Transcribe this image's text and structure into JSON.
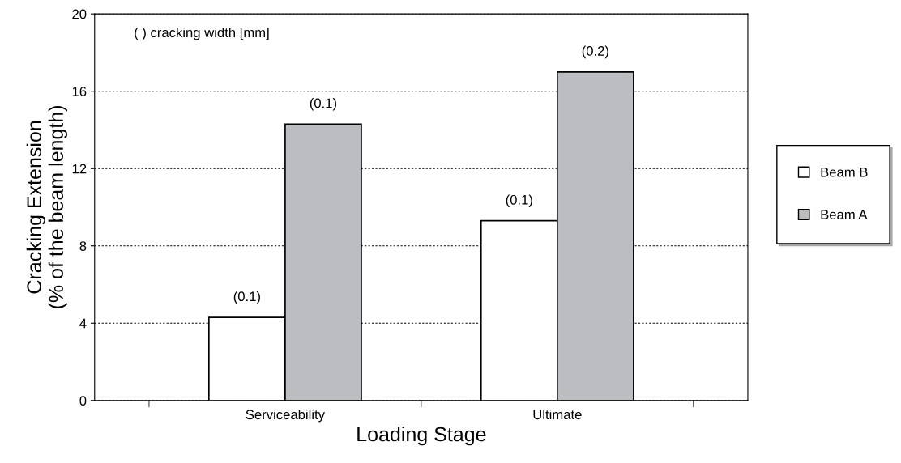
{
  "chart_data": {
    "type": "bar",
    "xlabel": "Loading Stage",
    "ylabel": "Cracking Extension\n(% of the beam length)",
    "categories": [
      "Serviceability",
      "Ultimate"
    ],
    "series": [
      {
        "name": "Beam B",
        "color": "#ffffff",
        "values": [
          4.3,
          9.3
        ]
      },
      {
        "name": "Beam A",
        "color": "#bcbdc1",
        "values": [
          14.3,
          17.0
        ]
      }
    ],
    "ylim": [
      0,
      20
    ],
    "yticks": [
      0,
      4,
      8,
      12,
      16,
      20
    ],
    "grid": "y",
    "legend": "right",
    "annotations": [
      "( ) cracking width [mm]",
      {
        "text": "(0.1)",
        "x": "Serviceability",
        "y": 4.3
      },
      {
        "text": "(0.1)",
        "x": "Serviceability",
        "y": 14.3
      },
      {
        "text": "(0.1)",
        "x": "Ultimate",
        "y": 9.3
      },
      {
        "text": "(0.2)",
        "x": "Ultimate",
        "y": 17.0
      }
    ]
  }
}
